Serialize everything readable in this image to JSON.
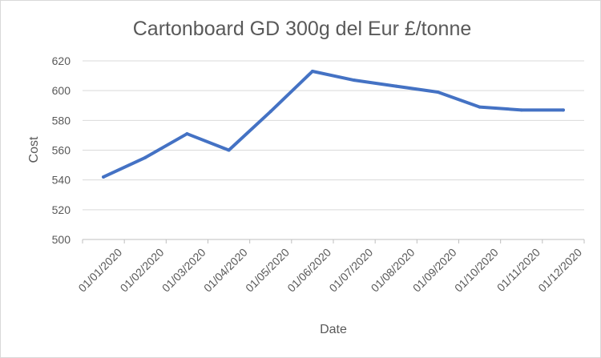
{
  "chart_data": {
    "type": "line",
    "title": "Cartonboard GD 300g del Eur £/tonne",
    "xlabel": "Date",
    "ylabel": "Cost",
    "categories": [
      "01/01/2020",
      "01/02/2020",
      "01/03/2020",
      "01/04/2020",
      "01/05/2020",
      "01/06/2020",
      "01/07/2020",
      "01/08/2020",
      "01/09/2020",
      "01/10/2020",
      "01/11/2020",
      "01/12/2020"
    ],
    "series": [
      {
        "values": [
          542,
          555,
          571,
          560,
          586,
          613,
          607,
          603,
          599,
          589,
          587,
          587
        ]
      }
    ],
    "ylim": [
      500,
      620
    ],
    "yticks": [
      500,
      520,
      540,
      560,
      580,
      600,
      620
    ],
    "grid": true,
    "legend": "none",
    "colors": {
      "line": "#4472c4",
      "grid": "#d9d9d9",
      "text": "#595959"
    }
  }
}
